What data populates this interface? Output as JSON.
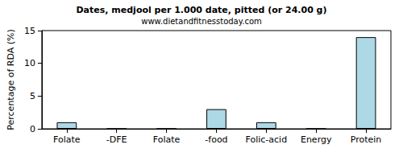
{
  "chart_data": {
    "type": "bar",
    "title": "Dates, medjool per 1.000 date, pitted (or 24.00 g)",
    "subtitle": "www.dietandfitnesstoday.com",
    "ylabel": "Percentage of RDA (%)",
    "categories": [
      "Folate",
      "-DFE",
      "Folate",
      "-food",
      "Folic-acid",
      "Energy",
      "Protein"
    ],
    "values": [
      1,
      0,
      0,
      3,
      1,
      0,
      14
    ],
    "color": "#add8e6",
    "ylim": [
      0,
      15
    ],
    "yticks": [
      0,
      5,
      10,
      15
    ],
    "grid": false
  }
}
